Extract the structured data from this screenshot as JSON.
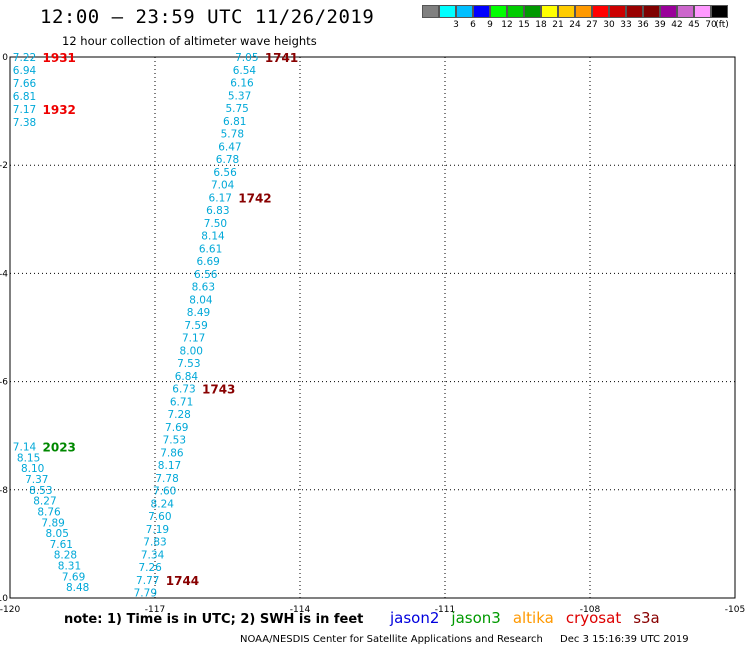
{
  "header": {
    "title": "12:00 – 23:59 UTC 11/26/2019",
    "subtitle": "12 hour collection of altimeter wave heights"
  },
  "legend": {
    "unit": "(ft)",
    "entries": [
      {
        "label": "",
        "color": "#808080"
      },
      {
        "label": "3",
        "color": "#00ffff"
      },
      {
        "label": "6",
        "color": "#00bfff"
      },
      {
        "label": "9",
        "color": "#0000ff"
      },
      {
        "label": "12",
        "color": "#00ff00"
      },
      {
        "label": "15",
        "color": "#00cc00"
      },
      {
        "label": "18",
        "color": "#009900"
      },
      {
        "label": "21",
        "color": "#ffff00"
      },
      {
        "label": "24",
        "color": "#ffcc00"
      },
      {
        "label": "27",
        "color": "#ff9900"
      },
      {
        "label": "30",
        "color": "#ff0000"
      },
      {
        "label": "33",
        "color": "#cc0000"
      },
      {
        "label": "36",
        "color": "#990000"
      },
      {
        "label": "39",
        "color": "#800000"
      },
      {
        "label": "42",
        "color": "#990099"
      },
      {
        "label": "45",
        "color": "#cc66cc"
      },
      {
        "label": "70",
        "color": "#ff99ff"
      },
      {
        "label": "",
        "color": "#000000"
      }
    ]
  },
  "map": {
    "x_ticks": [
      "-120",
      "-117",
      "-114",
      "-111",
      "-108",
      "-105"
    ],
    "y_ticks": [
      "0",
      "-2",
      "-4",
      "-6",
      "-8",
      "-10"
    ],
    "lon_range": [
      -120,
      -105
    ],
    "lat_range": [
      -10,
      0
    ],
    "value_color": "#00a8d8",
    "tracks": [
      {
        "lon_start": -119.7,
        "lat_start": 0.0,
        "lon_end": -119.7,
        "lat_end": -1.2,
        "values": [
          "7.22",
          "6.94",
          "7.66",
          "6.81",
          "7.17",
          "7.38"
        ],
        "time_labels": [
          {
            "text": "1931",
            "color": "#ee0000",
            "index": 0
          },
          {
            "text": "1932",
            "color": "#ee0000",
            "index": 4
          }
        ]
      },
      {
        "lon_start": -115.1,
        "lat_start": 0.0,
        "lon_end": -117.2,
        "lat_end": -9.9,
        "values": [
          "7.05",
          "6.54",
          "6.16",
          "5.37",
          "5.75",
          "6.81",
          "5.78",
          "6.47",
          "6.78",
          "6.56",
          "7.04",
          "6.17",
          "6.83",
          "7.50",
          "8.14",
          "6.61",
          "6.69",
          "6.56",
          "8.63",
          "8.04",
          "8.49",
          "7.59",
          "7.17",
          "8.00",
          "7.53",
          "6.84",
          "6.73",
          "6.71",
          "7.28",
          "7.69",
          "7.53",
          "7.86",
          "8.17",
          "7.78",
          "7.60",
          "8.24",
          "7.60",
          "7.19",
          "7.83",
          "7.34",
          "7.26",
          "7.77",
          "7.79"
        ],
        "time_labels": [
          {
            "text": "1741",
            "color": "#880000",
            "index": 0
          },
          {
            "text": "1742",
            "color": "#880000",
            "index": 11
          },
          {
            "text": "1743",
            "color": "#880000",
            "index": 26
          },
          {
            "text": "1744",
            "color": "#880000",
            "index": 41
          }
        ]
      },
      {
        "lon_start": -119.7,
        "lat_start": -7.2,
        "lon_end": -118.6,
        "lat_end": -9.8,
        "values": [
          "7.14",
          "8.15",
          "8.10",
          "7.37",
          "8.53",
          "8.27",
          "8.76",
          "7.89",
          "8.05",
          "7.61",
          "8.28",
          "8.31",
          "7.69",
          "8.48"
        ],
        "time_labels": [
          {
            "text": "2023",
            "color": "#008800",
            "index": 0
          }
        ]
      }
    ]
  },
  "footer": {
    "note": "note:  1) Time is in UTC;  2) SWH is in feet",
    "satellites": [
      {
        "name": "jason2",
        "color": "#0000dd"
      },
      {
        "name": "jason3",
        "color": "#009900"
      },
      {
        "name": "altika",
        "color": "#ff9900"
      },
      {
        "name": "cryosat",
        "color": "#dd0000"
      },
      {
        "name": "s3a",
        "color": "#880000"
      }
    ],
    "credit": "NOAA/NESDIS Center for Satellite Applications and Research",
    "timestamp": "Dec  3 15:16:39 UTC 2019"
  }
}
